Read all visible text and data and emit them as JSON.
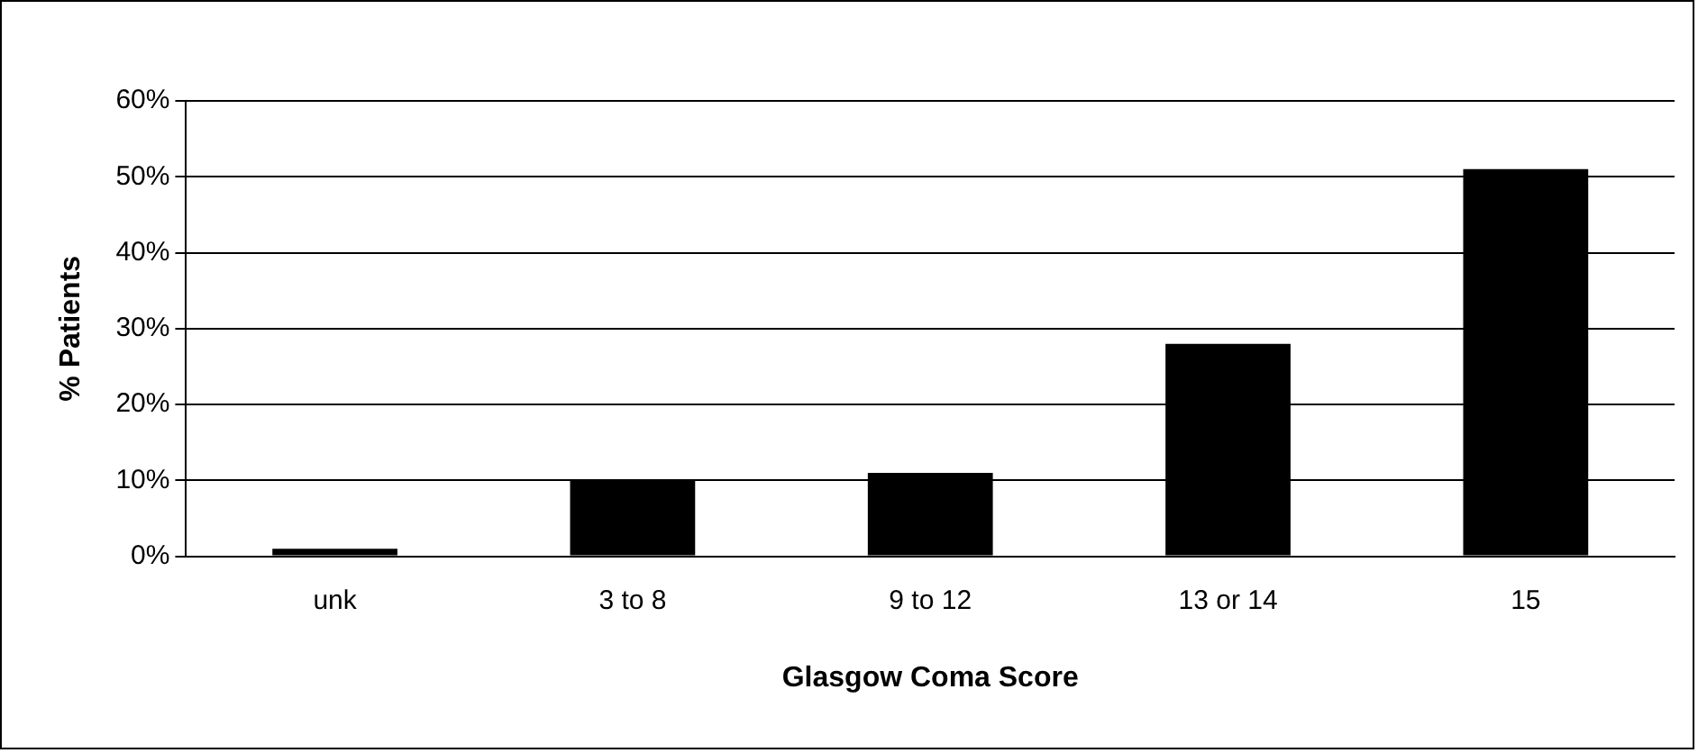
{
  "chart_data": {
    "type": "bar",
    "xlabel": "Glasgow Coma Score",
    "ylabel": "% Patients",
    "categories": [
      "unk",
      "3 to 8",
      "9 to 12",
      "13 or 14",
      "15"
    ],
    "values": [
      1,
      10,
      11,
      28,
      51
    ],
    "color": "#000000",
    "ylim": [
      0,
      60
    ],
    "yticks": [
      {
        "value": 0,
        "label": "0%"
      },
      {
        "value": 10,
        "label": "10%"
      },
      {
        "value": 20,
        "label": "20%"
      },
      {
        "value": 30,
        "label": "30%"
      },
      {
        "value": 40,
        "label": "40%"
      },
      {
        "value": 50,
        "label": "50%"
      },
      {
        "value": 60,
        "label": "60%"
      }
    ],
    "grid": "y",
    "legend": false
  }
}
